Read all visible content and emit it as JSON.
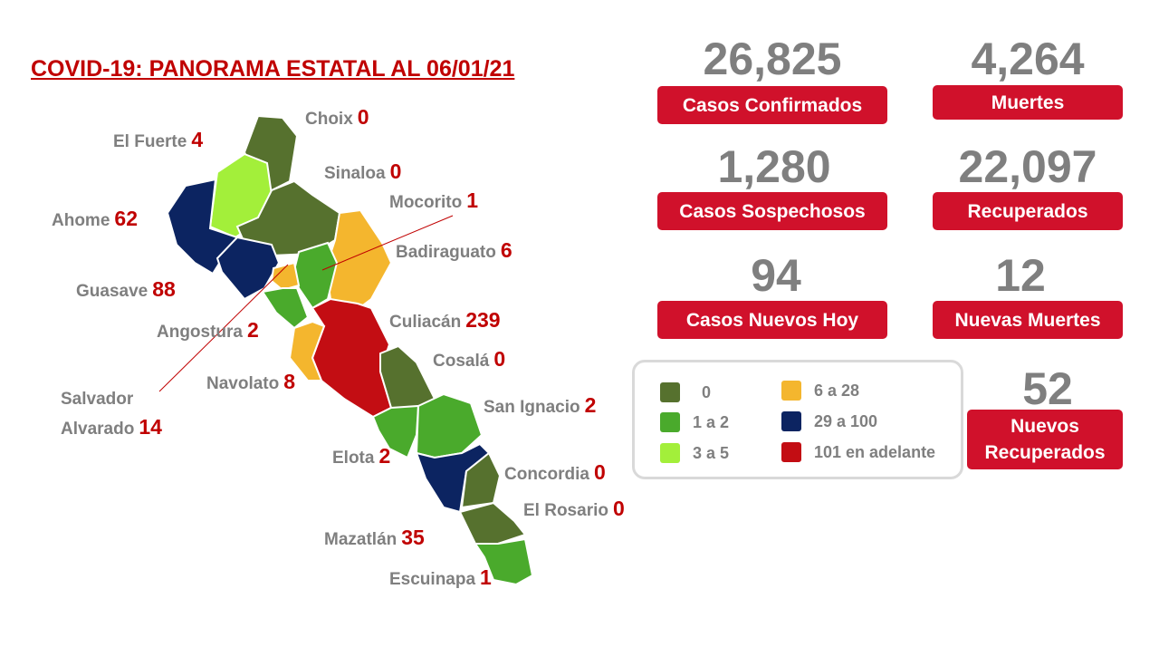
{
  "title": "COVID-19: PANORAMA ESTATAL AL 06/01/21",
  "municipalities": [
    {
      "name": "Choix",
      "value": 0
    },
    {
      "name": "El Fuerte",
      "value": 4
    },
    {
      "name": "Sinaloa",
      "value": 0
    },
    {
      "name": "Mocorito",
      "value": 1
    },
    {
      "name": "Ahome",
      "value": 62
    },
    {
      "name": "Badiraguato",
      "value": 6
    },
    {
      "name": "Guasave",
      "value": 88
    },
    {
      "name": "Angostura",
      "value": 2
    },
    {
      "name": "Culiacán",
      "value": 239
    },
    {
      "name": "Cosalá",
      "value": 0
    },
    {
      "name": "Navolato",
      "value": 8
    },
    {
      "name": "Salvador Alvarado",
      "value": 14
    },
    {
      "name": "San Ignacio",
      "value": 2
    },
    {
      "name": "Elota",
      "value": 2
    },
    {
      "name": "Concordia",
      "value": 0
    },
    {
      "name": "El Rosario",
      "value": 0
    },
    {
      "name": "Mazatlán",
      "value": 35
    },
    {
      "name": "Escuinapa",
      "value": 1
    }
  ],
  "stats": [
    {
      "value": "26,825",
      "label": "Casos Confirmados"
    },
    {
      "value": "4,264",
      "label": "Muertes"
    },
    {
      "value": "1,280",
      "label": "Casos Sospechosos"
    },
    {
      "value": "22,097",
      "label": "Recuperados"
    },
    {
      "value": "94",
      "label": "Casos Nuevos Hoy"
    },
    {
      "value": "12",
      "label": "Nuevas Muertes"
    },
    {
      "value": "52",
      "label": "Nuevos Recuperados"
    }
  ],
  "legend": [
    {
      "label": "0",
      "color": "#56712e"
    },
    {
      "label": "1 a 2",
      "color": "#4aaa2c"
    },
    {
      "label": "3 a 5",
      "color": "#a3ef3a"
    },
    {
      "label": "6 a 28",
      "color": "#f4b62e"
    },
    {
      "label": "29 a 100",
      "color": "#0c2461"
    },
    {
      "label": "101 en adelante",
      "color": "#c30d13"
    }
  ]
}
